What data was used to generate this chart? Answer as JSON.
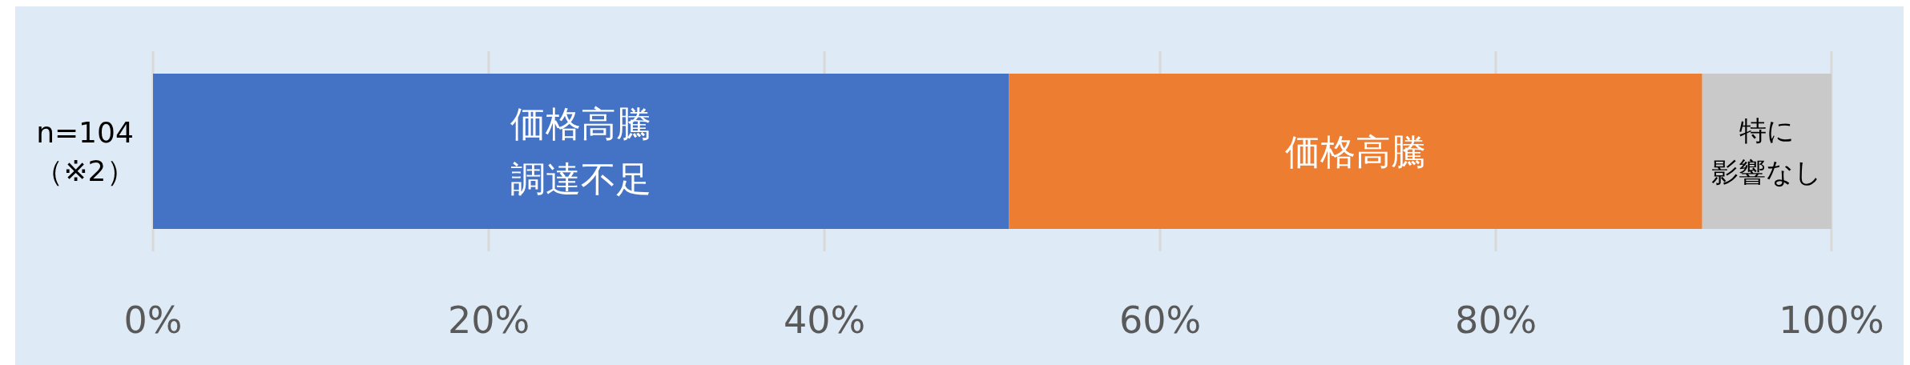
{
  "chart_data": {
    "type": "bar",
    "orientation": "horizontal",
    "stacked": true,
    "categories": [
      "n=104\n（※2）"
    ],
    "series": [
      {
        "name": "価格高騰調達不足",
        "color": "#4472c4",
        "values": [
          51.0
        ]
      },
      {
        "name": "価格高騰",
        "color": "#ed7d31",
        "values": [
          41.3
        ]
      },
      {
        "name": "特に影響なし",
        "color": "#c9c9c9",
        "values": [
          7.7
        ]
      }
    ],
    "xlim": [
      0,
      100
    ],
    "xticks": [
      {
        "value": 0,
        "label": "0%"
      },
      {
        "value": 20,
        "label": "20%"
      },
      {
        "value": 40,
        "label": "40%"
      },
      {
        "value": 60,
        "label": "60%"
      },
      {
        "value": 80,
        "label": "80%"
      },
      {
        "value": 100,
        "label": "100%"
      }
    ],
    "grid": "x"
  }
}
